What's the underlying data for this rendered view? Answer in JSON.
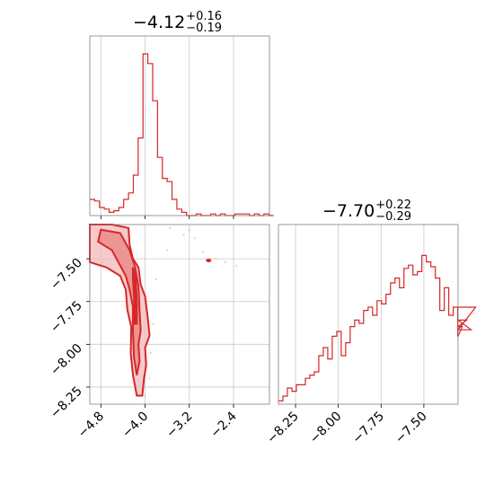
{
  "chart_data": [
    {
      "type": "histogram",
      "panel": "marginal-x",
      "title": {
        "value": "−4.12",
        "plus": "+0.16",
        "minus": "−0.19"
      },
      "xlim": [
        -5.0,
        -1.75
      ],
      "bins": {
        "start": -5.0,
        "width": 0.0875,
        "values": [
          0.1,
          0.09,
          0.05,
          0.04,
          0.02,
          0.03,
          0.05,
          0.1,
          0.14,
          0.25,
          0.48,
          1.0,
          0.94,
          0.71,
          0.36,
          0.23,
          0.21,
          0.1,
          0.04,
          0.02,
          0.0,
          0.0,
          0.01,
          0.0,
          0.0,
          0.01,
          0.0,
          0.01,
          0.0,
          0.0,
          0.01,
          0.01,
          0.01,
          0.0,
          0.01,
          0.0,
          0.01,
          0.0
        ]
      },
      "color": "#d62728",
      "grid": true
    },
    {
      "type": "contour",
      "panel": "joint",
      "xlim": [
        -5.0,
        -1.75
      ],
      "ylim": [
        -8.35,
        -7.3
      ],
      "xticks": [
        "−4.8",
        "−4.0",
        "−3.2",
        "−2.4"
      ],
      "xtick_values": [
        -4.8,
        -4.0,
        -3.2,
        -2.4
      ],
      "yticks": [
        "−7.50",
        "−7.75",
        "−8.00",
        "−8.25"
      ],
      "ytick_values": [
        -7.5,
        -7.75,
        -8.0,
        -8.25
      ],
      "outer_contour": [
        [
          -5.0,
          -7.3
        ],
        [
          -4.6,
          -7.3
        ],
        [
          -4.3,
          -7.32
        ],
        [
          -4.28,
          -7.42
        ],
        [
          -4.22,
          -7.5
        ],
        [
          -4.12,
          -7.55
        ],
        [
          -4.08,
          -7.65
        ],
        [
          -4.0,
          -7.72
        ],
        [
          -3.95,
          -7.85
        ],
        [
          -3.92,
          -7.95
        ],
        [
          -4.0,
          -8.02
        ],
        [
          -3.98,
          -8.12
        ],
        [
          -4.02,
          -8.2
        ],
        [
          -4.05,
          -8.3
        ],
        [
          -4.15,
          -8.3
        ],
        [
          -4.22,
          -8.18
        ],
        [
          -4.26,
          -8.05
        ],
        [
          -4.25,
          -7.9
        ],
        [
          -4.32,
          -7.8
        ],
        [
          -4.35,
          -7.68
        ],
        [
          -4.45,
          -7.6
        ],
        [
          -4.7,
          -7.55
        ],
        [
          -5.0,
          -7.52
        ]
      ],
      "inner_contour": [
        [
          -4.8,
          -7.33
        ],
        [
          -4.45,
          -7.35
        ],
        [
          -4.28,
          -7.45
        ],
        [
          -4.18,
          -7.55
        ],
        [
          -4.12,
          -7.66
        ],
        [
          -4.1,
          -7.8
        ],
        [
          -4.08,
          -7.92
        ],
        [
          -4.12,
          -8.0
        ],
        [
          -4.1,
          -8.1
        ],
        [
          -4.15,
          -8.18
        ],
        [
          -4.2,
          -8.08
        ],
        [
          -4.22,
          -7.92
        ],
        [
          -4.22,
          -7.78
        ],
        [
          -4.28,
          -7.68
        ],
        [
          -4.35,
          -7.6
        ],
        [
          -4.6,
          -7.45
        ],
        [
          -4.85,
          -7.4
        ]
      ],
      "core_contour": [
        [
          -4.22,
          -7.55
        ],
        [
          -4.17,
          -7.62
        ],
        [
          -4.15,
          -7.75
        ],
        [
          -4.15,
          -7.88
        ],
        [
          -4.19,
          -7.88
        ],
        [
          -4.2,
          -7.72
        ],
        [
          -4.22,
          -7.62
        ]
      ],
      "scatter_points": [
        [
          -3.55,
          -7.32
        ],
        [
          -3.3,
          -7.36
        ],
        [
          -3.1,
          -7.38
        ],
        [
          -2.95,
          -7.46
        ],
        [
          -2.72,
          -7.5
        ],
        [
          -2.55,
          -7.52
        ],
        [
          -2.35,
          -7.54
        ],
        [
          -3.6,
          -7.45
        ],
        [
          -3.8,
          -7.62
        ],
        [
          -3.85,
          -7.88
        ],
        [
          -3.9,
          -8.05
        ],
        [
          -3.92,
          -8.2
        ],
        [
          -4.0,
          -8.3
        ],
        [
          -4.6,
          -7.48
        ],
        [
          -4.75,
          -7.52
        ],
        [
          -4.9,
          -7.46
        ],
        [
          -3.2,
          -7.33
        ]
      ],
      "isolated_contour_center": [
        -2.85,
        -7.51
      ],
      "color": "#d62728",
      "grid": true
    },
    {
      "type": "histogram",
      "panel": "marginal-y",
      "title": {
        "value": "−7.70",
        "plus": "+0.22",
        "minus": "−0.29"
      },
      "xlim": [
        -8.35,
        -7.3
      ],
      "xticks": [
        "−8.25",
        "−8.00",
        "−7.75",
        "−7.50"
      ],
      "xtick_values": [
        -8.25,
        -8.0,
        -7.75,
        -7.5
      ],
      "bins": {
        "start": -8.35,
        "width": 0.0262,
        "values": [
          0.02,
          0.05,
          0.1,
          0.08,
          0.12,
          0.12,
          0.16,
          0.18,
          0.2,
          0.3,
          0.35,
          0.28,
          0.42,
          0.45,
          0.3,
          0.38,
          0.48,
          0.52,
          0.5,
          0.58,
          0.6,
          0.55,
          0.64,
          0.62,
          0.68,
          0.75,
          0.78,
          0.72,
          0.84,
          0.86,
          0.8,
          0.82,
          0.92,
          0.88,
          0.85,
          0.78,
          0.58,
          0.72,
          0.55,
          0.6,
          0.42,
          0.48,
          0.52,
          0.46,
          0.6
        ]
      },
      "color": "#d62728",
      "grid": true
    }
  ]
}
